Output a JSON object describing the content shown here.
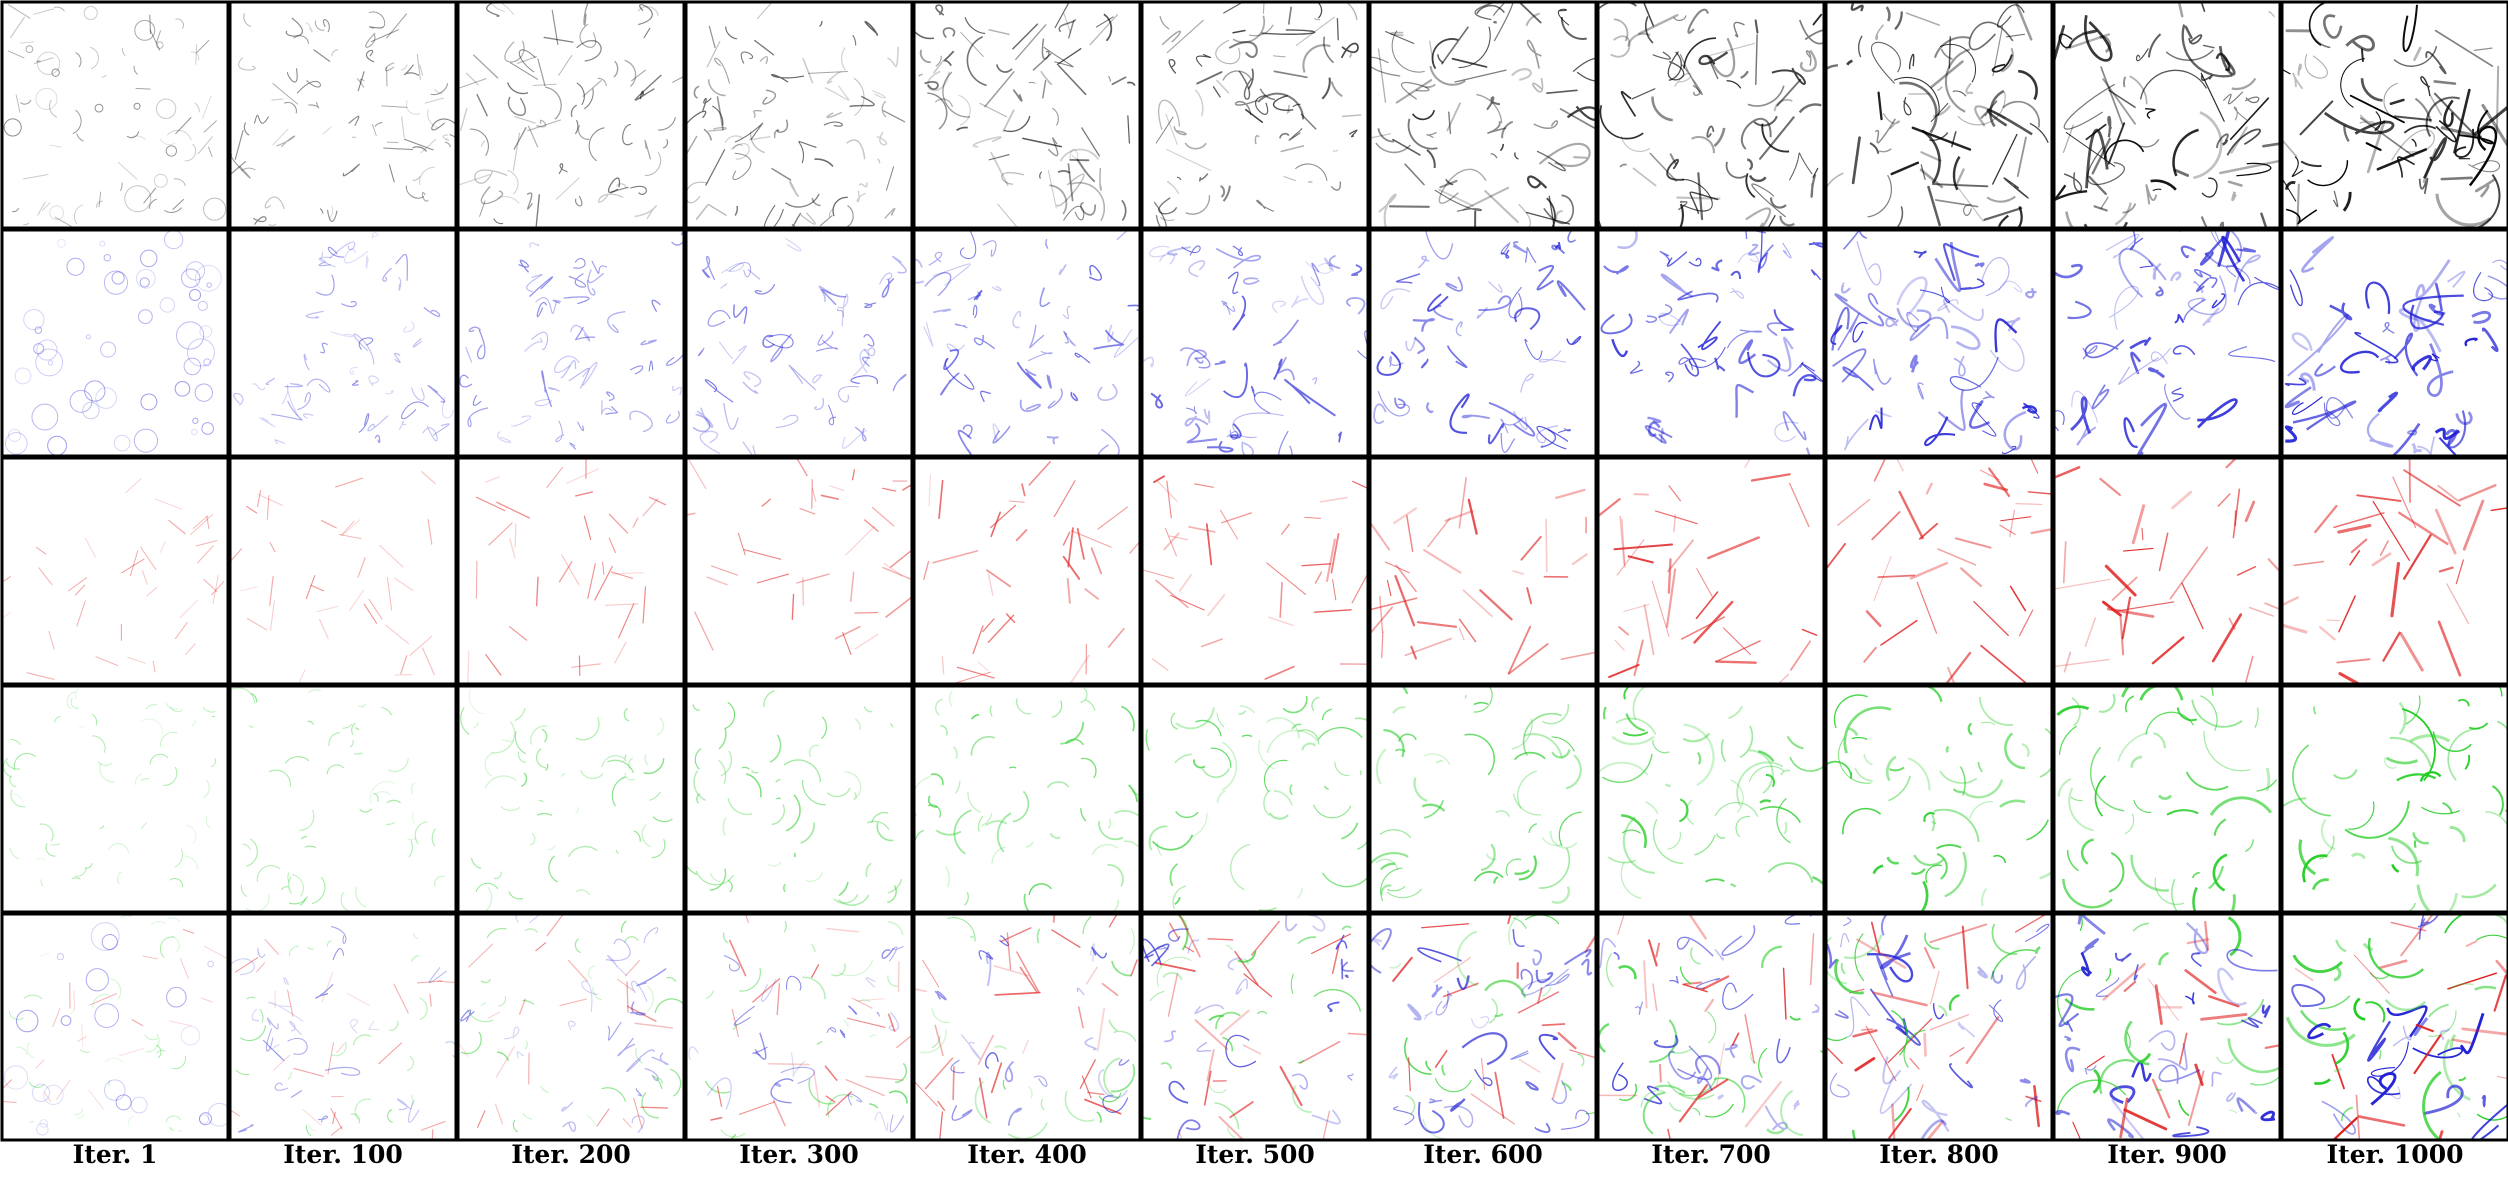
{
  "figure": {
    "rows": [
      {
        "stroke_color": "#000000",
        "shape": "mixed"
      },
      {
        "stroke_color": "#1f1fd6",
        "shape": "circle-curve"
      },
      {
        "stroke_color": "#e01c1c",
        "shape": "line"
      },
      {
        "stroke_color": "#22cc22",
        "shape": "arc"
      },
      {
        "stroke_color": "mixed",
        "shape": "combined"
      }
    ],
    "columns": [
      {
        "label": "Iter. 1",
        "progress": 0.0
      },
      {
        "label": "Iter. 100",
        "progress": 0.1
      },
      {
        "label": "Iter. 200",
        "progress": 0.2
      },
      {
        "label": "Iter. 300",
        "progress": 0.3
      },
      {
        "label": "Iter. 400",
        "progress": 0.4
      },
      {
        "label": "Iter. 500",
        "progress": 0.5
      },
      {
        "label": "Iter. 600",
        "progress": 0.6
      },
      {
        "label": "Iter. 700",
        "progress": 0.7
      },
      {
        "label": "Iter. 800",
        "progress": 0.8
      },
      {
        "label": "Iter. 900",
        "progress": 0.9
      },
      {
        "label": "Iter. 1000",
        "progress": 1.0
      }
    ],
    "combined_colors": [
      "#1f1fd6",
      "#e01c1c",
      "#22cc22",
      "#000000"
    ]
  }
}
